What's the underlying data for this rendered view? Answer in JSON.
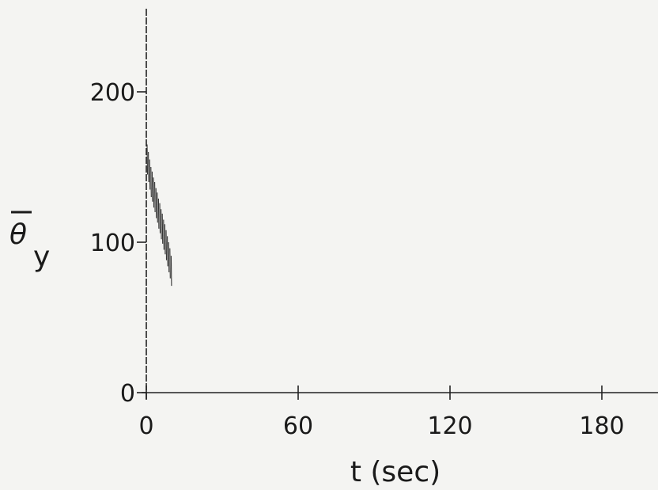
{
  "chart_data": {
    "type": "scatter",
    "title": "",
    "xlabel": "t (sec)",
    "ylabel_symbol": "θ",
    "ylabel_subscript": "y",
    "xlim": [
      0,
      200
    ],
    "ylim": [
      0,
      250
    ],
    "x_ticks": [
      "0",
      "60",
      "120",
      "180"
    ],
    "y_ticks": [
      "0",
      "100",
      "200"
    ],
    "grid": false,
    "legend": "none",
    "line_color": "#333333",
    "series": [
      {
        "name": "",
        "points": [
          {
            "x": 0.0,
            "y": 165
          },
          {
            "x": 0.5,
            "y": 160
          },
          {
            "x": 1.0,
            "y": 155
          },
          {
            "x": 1.5,
            "y": 150
          },
          {
            "x": 2.0,
            "y": 147
          },
          {
            "x": 2.5,
            "y": 143
          },
          {
            "x": 3.0,
            "y": 140
          },
          {
            "x": 3.5,
            "y": 136
          },
          {
            "x": 4.0,
            "y": 133
          },
          {
            "x": 4.5,
            "y": 129
          },
          {
            "x": 5.0,
            "y": 126
          },
          {
            "x": 5.5,
            "y": 122
          },
          {
            "x": 6.0,
            "y": 119
          },
          {
            "x": 6.5,
            "y": 115
          },
          {
            "x": 7.0,
            "y": 112
          },
          {
            "x": 7.5,
            "y": 108
          },
          {
            "x": 8.0,
            "y": 104
          },
          {
            "x": 8.5,
            "y": 100
          },
          {
            "x": 9.0,
            "y": 96
          },
          {
            "x": 9.5,
            "y": 91
          }
        ],
        "spread": 20
      }
    ]
  }
}
